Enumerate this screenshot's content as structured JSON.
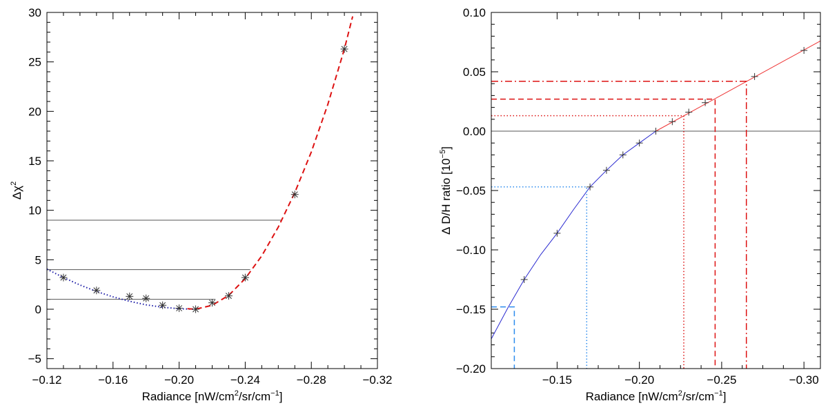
{
  "chart_data": [
    {
      "type": "scatter",
      "panel": "left",
      "xlabel": "Radiance [nW/cm²/sr/cm⁻¹]",
      "xlabel_parts": {
        "pre": "Radiance [nW/cm",
        "sup1": "2",
        "mid": "/sr/cm",
        "sup2": "−1",
        "post": "]"
      },
      "ylabel": "Δχ²",
      "ylabel_parts": {
        "base": "Δχ",
        "sup": "2"
      },
      "xlim": [
        -0.12,
        -0.32
      ],
      "ylim": [
        -6,
        30
      ],
      "xticks": [
        -0.12,
        -0.16,
        -0.2,
        -0.24,
        -0.28,
        -0.32
      ],
      "xtick_labels": [
        "−0.12",
        "−0.16",
        "−0.20",
        "−0.24",
        "−0.28",
        "−0.32"
      ],
      "yticks": [
        -5,
        0,
        5,
        10,
        15,
        20,
        25,
        30
      ],
      "ytick_labels": [
        "−5",
        "0",
        "5",
        "10",
        "15",
        "20",
        "25",
        "30"
      ],
      "points": {
        "x": [
          -0.13,
          -0.15,
          -0.17,
          -0.18,
          -0.19,
          -0.2,
          -0.21,
          -0.22,
          -0.23,
          -0.24,
          -0.27,
          -0.3
        ],
        "y": [
          3.2,
          1.9,
          1.3,
          1.1,
          0.4,
          0.1,
          0.0,
          0.65,
          1.35,
          3.2,
          11.6,
          26.3
        ],
        "marker": "asterisk",
        "color": "#333333"
      },
      "blue_fit": {
        "style": "dotted",
        "color": "#1a1aa6",
        "x": [
          -0.12,
          -0.13,
          -0.14,
          -0.15,
          -0.16,
          -0.17,
          -0.18,
          -0.19,
          -0.2,
          -0.21
        ],
        "y": [
          4.05,
          3.2,
          2.45,
          1.8,
          1.25,
          0.8,
          0.45,
          0.2,
          0.05,
          0.0
        ]
      },
      "red_fit": {
        "style": "dashed",
        "color": "#dd1111",
        "x": [
          -0.205,
          -0.21,
          -0.22,
          -0.23,
          -0.24,
          -0.25,
          -0.26,
          -0.27,
          -0.28,
          -0.29,
          -0.3,
          -0.305
        ],
        "y": [
          0.05,
          0.0,
          0.4,
          1.4,
          3.1,
          5.4,
          8.3,
          11.8,
          15.9,
          20.7,
          26.3,
          29.6
        ]
      },
      "hlines": [
        {
          "y": 1,
          "x_end": -0.222
        },
        {
          "y": 4,
          "x_end": -0.243
        },
        {
          "y": 9,
          "x_end": -0.262
        }
      ]
    },
    {
      "type": "line",
      "panel": "right",
      "xlabel": "Radiance [nW/cm²/sr/cm⁻¹]",
      "xlabel_parts": {
        "pre": "Radiance [nW/cm",
        "sup1": "2",
        "mid": "/sr/cm",
        "sup2": "−1",
        "post": "]"
      },
      "ylabel": "Δ D/H ratio [10⁻⁵]",
      "ylabel_parts": {
        "pre": "Δ D/H ratio [10",
        "sup": "−5",
        "post": "]"
      },
      "xlim": [
        -0.11,
        -0.31
      ],
      "ylim": [
        -0.2,
        0.1
      ],
      "xticks": [
        -0.15,
        -0.2,
        -0.25,
        -0.3
      ],
      "xtick_labels": [
        "−0.15",
        "−0.20",
        "−0.25",
        "−0.30"
      ],
      "yticks": [
        -0.2,
        -0.15,
        -0.1,
        -0.05,
        0.0,
        0.05,
        0.1
      ],
      "ytick_labels": [
        "−0.20",
        "−0.15",
        "−0.10",
        "−0.05",
        "0.00",
        "0.05",
        "0.10"
      ],
      "points": {
        "x": [
          -0.13,
          -0.15,
          -0.17,
          -0.18,
          -0.19,
          -0.2,
          -0.21,
          -0.22,
          -0.23,
          -0.24,
          -0.27,
          -0.3
        ],
        "y": [
          -0.125,
          -0.086,
          -0.047,
          -0.033,
          -0.02,
          -0.01,
          0.0,
          0.008,
          0.016,
          0.024,
          0.046,
          0.068
        ],
        "marker": "plus",
        "color": "#333333"
      },
      "blue_curve": {
        "color": "#2a2ad0",
        "x": [
          -0.11,
          -0.12,
          -0.13,
          -0.14,
          -0.15,
          -0.16,
          -0.17,
          -0.18,
          -0.19,
          -0.2,
          -0.21
        ],
        "y": [
          -0.175,
          -0.149,
          -0.125,
          -0.104,
          -0.086,
          -0.066,
          -0.047,
          -0.033,
          -0.02,
          -0.01,
          0.0
        ]
      },
      "red_line": {
        "color": "#ee3333",
        "x": [
          -0.21,
          -0.31
        ],
        "y": [
          0.0,
          0.076
        ]
      },
      "zero_line": {
        "y": 0.0
      },
      "guides": [
        {
          "color": "#2a8aee",
          "style": "dotted",
          "x": -0.168,
          "y": -0.047
        },
        {
          "color": "#2a8aee",
          "style": "dashed",
          "x": -0.124,
          "y": -0.148
        },
        {
          "color": "#dd1111",
          "style": "dotted",
          "x": -0.227,
          "y": 0.013
        },
        {
          "color": "#dd1111",
          "style": "dashed",
          "x": -0.246,
          "y": 0.027
        },
        {
          "color": "#dd1111",
          "style": "dashdot",
          "x": -0.265,
          "y": 0.042
        }
      ]
    }
  ]
}
